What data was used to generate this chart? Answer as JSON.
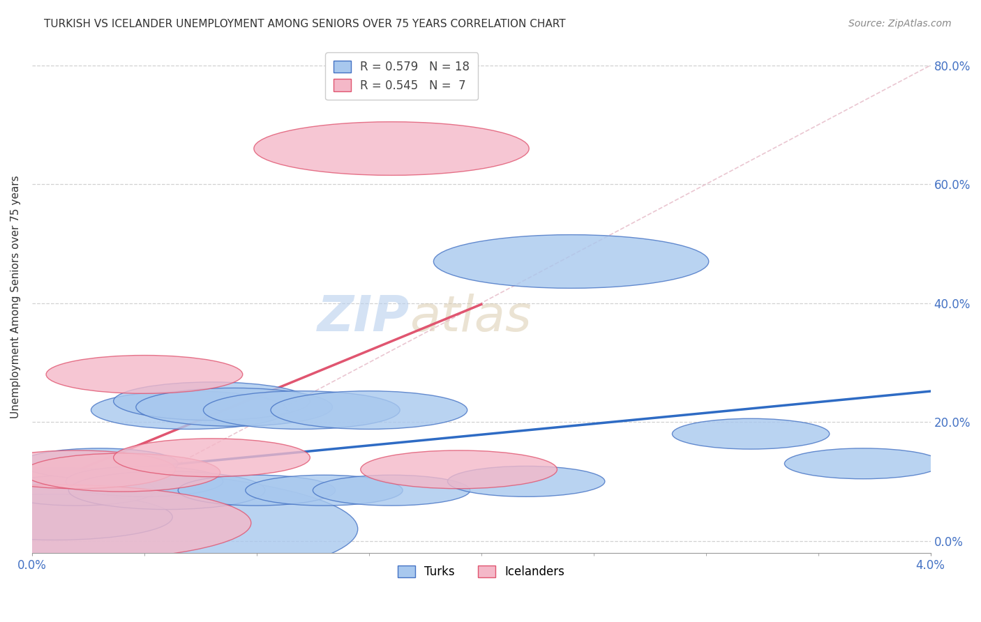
{
  "title": "TURKISH VS ICELANDER UNEMPLOYMENT AMONG SENIORS OVER 75 YEARS CORRELATION CHART",
  "source": "Source: ZipAtlas.com",
  "ylabel": "Unemployment Among Seniors over 75 years",
  "xlim": [
    0.0,
    0.04
  ],
  "ylim": [
    -0.02,
    0.84
  ],
  "xtick_positions": [
    0.0,
    0.04
  ],
  "xtick_labels": [
    "0.0%",
    "4.0%"
  ],
  "ytick_positions": [
    0.0,
    0.2,
    0.4,
    0.6,
    0.8
  ],
  "ytick_labels": [
    "0.0%",
    "20.0%",
    "40.0%",
    "60.0%",
    "80.0%"
  ],
  "turks_x": [
    0.0005,
    0.001,
    0.002,
    0.003,
    0.005,
    0.006,
    0.007,
    0.008,
    0.009,
    0.01,
    0.012,
    0.013,
    0.015,
    0.016,
    0.022,
    0.024,
    0.032,
    0.037
  ],
  "turks_y": [
    0.02,
    0.04,
    0.085,
    0.13,
    0.1,
    0.085,
    0.22,
    0.235,
    0.225,
    0.085,
    0.22,
    0.085,
    0.22,
    0.085,
    0.1,
    0.47,
    0.18,
    0.13
  ],
  "turks_sizes": [
    800,
    300,
    200,
    200,
    200,
    250,
    250,
    250,
    250,
    200,
    250,
    200,
    250,
    200,
    200,
    350,
    200,
    200
  ],
  "icelanders_x": [
    0.001,
    0.002,
    0.004,
    0.005,
    0.008,
    0.016,
    0.019
  ],
  "icelanders_y": [
    0.03,
    0.12,
    0.115,
    0.28,
    0.14,
    0.66,
    0.12
  ],
  "icelanders_sizes": [
    500,
    250,
    250,
    250,
    250,
    350,
    250
  ],
  "turks_color": "#A8C8EE",
  "turks_edge_color": "#4472C4",
  "icelanders_color": "#F4B8C8",
  "icelanders_edge_color": "#E05570",
  "turks_line_color": "#2E6BC4",
  "icelanders_line_color": "#E05570",
  "diagonal_color": "#E8C0CC",
  "R_turks": 0.579,
  "N_turks": 18,
  "R_icelanders": 0.545,
  "N_icelanders": 7,
  "watermark_zip": "ZIP",
  "watermark_atlas": "atlas",
  "background_color": "#ffffff",
  "grid_color": "#cccccc"
}
